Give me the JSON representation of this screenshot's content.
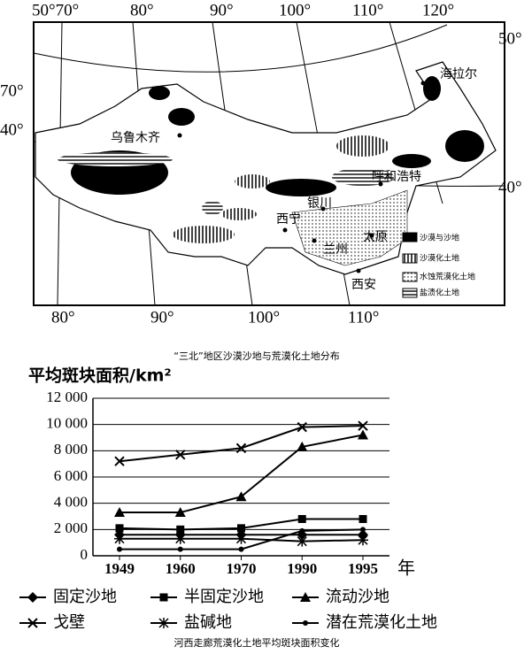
{
  "map": {
    "caption": "“三北”地区沙漠沙地与荒漠化土地分布",
    "degrees": {
      "top": [
        "50°70°",
        "80°",
        "90°",
        "100°",
        "110°",
        "120°"
      ],
      "left": [
        "70°",
        "40°"
      ],
      "right": [
        "50°",
        "40°"
      ],
      "bottom": [
        "80°",
        "90°",
        "100°",
        "110°"
      ]
    },
    "cities": [
      "乌鲁木齐",
      "海拉尔",
      "呼和浩特",
      "银川",
      "西宁",
      "兰州",
      "太原",
      "西安"
    ],
    "legend": [
      "沙漠与沙地",
      "沙漠化土地",
      "水蚀荒漠化土地",
      "盐渍化土地"
    ]
  },
  "chart_data": {
    "type": "line",
    "title": "河西走廊荒漠化土地平均斑块面积变化",
    "y_label": "平均斑块面积/km²",
    "x_label": "年",
    "categories": [
      "1949",
      "1960",
      "1970",
      "1990",
      "1995"
    ],
    "ylim": [
      0,
      12000
    ],
    "yticks": [
      0,
      {
        "value": 2000,
        "label": "2 000"
      },
      {
        "value": 4000,
        "label": "4 000"
      },
      {
        "value": 6000,
        "label": "6 000"
      },
      {
        "value": 8000,
        "label": "8 000"
      },
      {
        "value": 10000,
        "label": "10 000"
      },
      {
        "value": 12000,
        "label": "12 000"
      }
    ],
    "series": [
      {
        "name": "固定沙地",
        "color": "#000000",
        "marker": "diamond",
        "values": [
          1600,
          1600,
          1600,
          1600,
          1600
        ]
      },
      {
        "name": "半固定沙地",
        "color": "#000000",
        "marker": "square",
        "values": [
          2100,
          2000,
          2100,
          2800,
          2800
        ]
      },
      {
        "name": "流动沙地",
        "color": "#000000",
        "marker": "triangle",
        "values": [
          3300,
          3300,
          4500,
          8300,
          9200
        ]
      },
      {
        "name": "戈壁",
        "color": "#000000",
        "marker": "x",
        "values": [
          7200,
          7700,
          8200,
          9800,
          9900
        ]
      },
      {
        "name": "盐碱地",
        "color": "#000000",
        "marker": "star",
        "values": [
          1300,
          1300,
          1300,
          1100,
          1200
        ]
      },
      {
        "name": "潜在荒漠化土地",
        "color": "#000000",
        "marker": "dot",
        "values": [
          500,
          500,
          500,
          1900,
          2000
        ]
      }
    ]
  }
}
